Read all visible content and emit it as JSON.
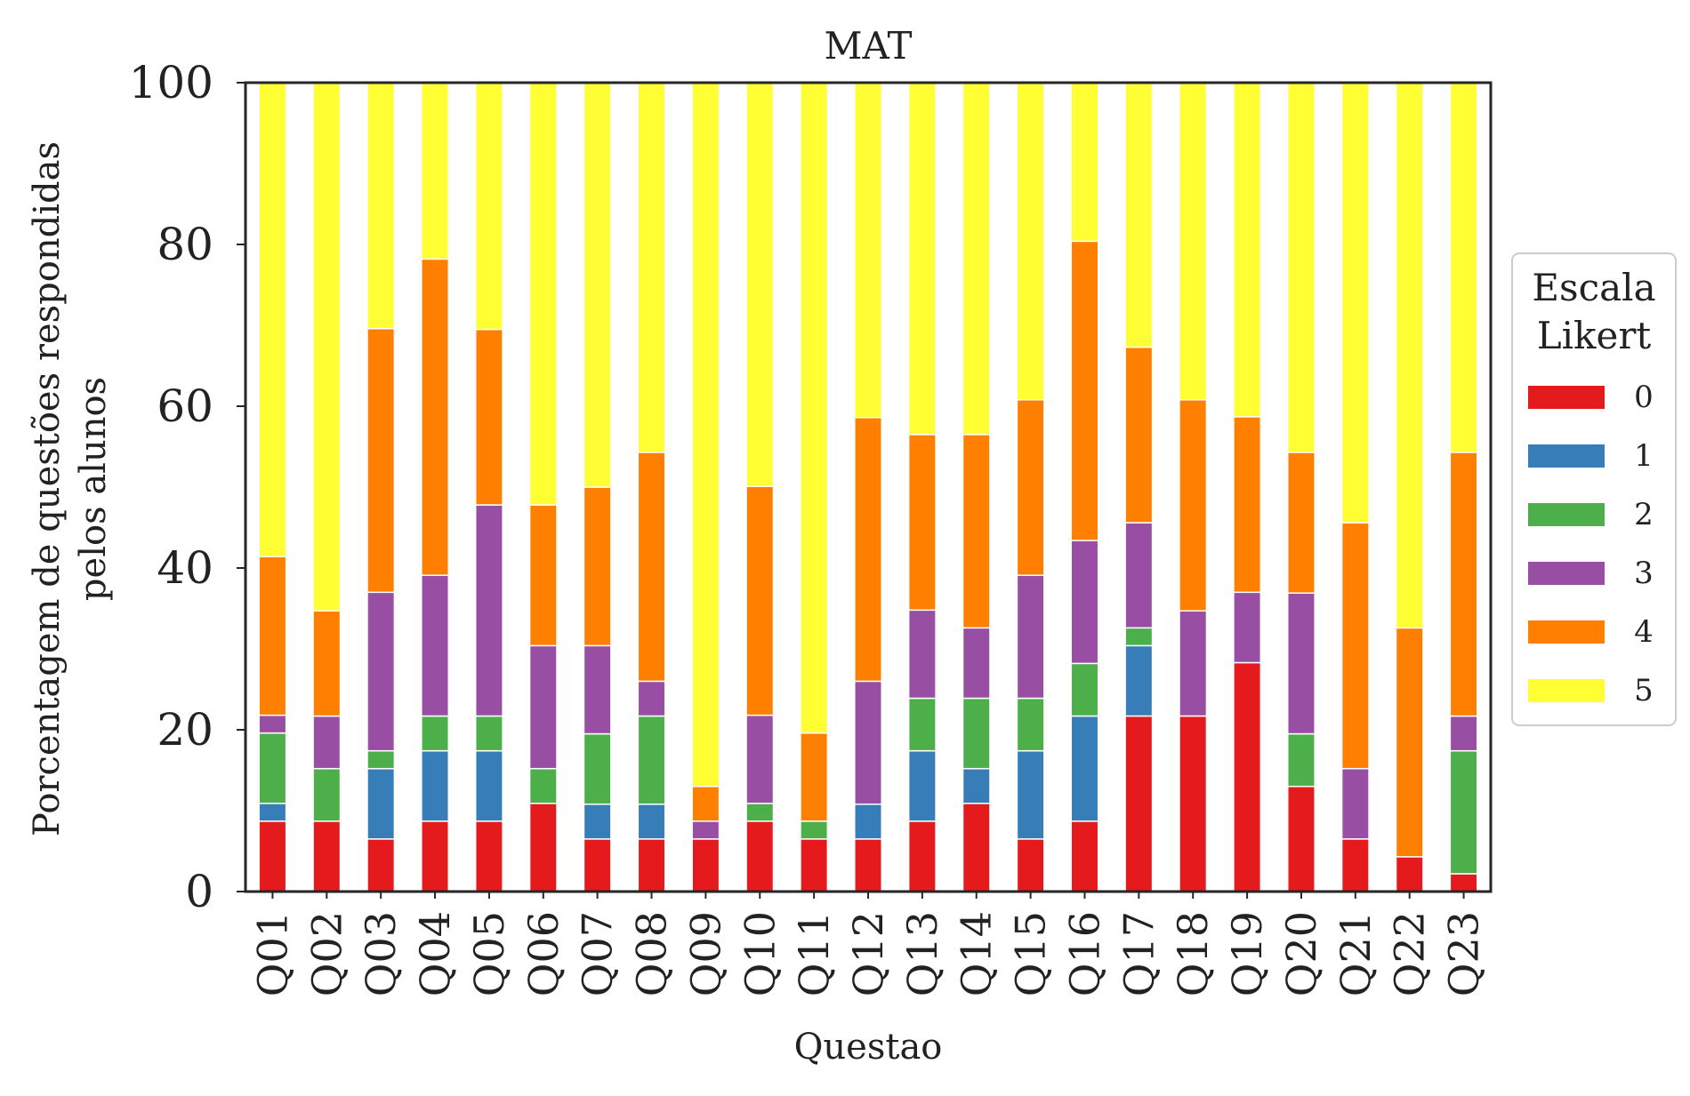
{
  "chart_data": {
    "type": "bar",
    "stacked": true,
    "title": "MAT",
    "xlabel": "Questao",
    "ylabel": [
      "Porcentagem de questões respondidas",
      "pelos alunos"
    ],
    "ylim": [
      0,
      100
    ],
    "yticks": [
      "0",
      "20",
      "40",
      "60",
      "80",
      "100"
    ],
    "grid": false,
    "legend": {
      "title": [
        "Escala",
        "Likert"
      ],
      "placement": "right"
    },
    "categories": [
      "Q01",
      "Q02",
      "Q03",
      "Q04",
      "Q05",
      "Q06",
      "Q07",
      "Q08",
      "Q09",
      "Q10",
      "Q11",
      "Q12",
      "Q13",
      "Q14",
      "Q15",
      "Q16",
      "Q17",
      "Q18",
      "Q19",
      "Q20",
      "Q21",
      "Q22",
      "Q23"
    ],
    "series": [
      {
        "name": "0",
        "color": "#e41a1c",
        "values": [
          8.7,
          8.7,
          6.5,
          8.7,
          8.7,
          10.9,
          6.5,
          6.5,
          6.5,
          8.7,
          6.5,
          6.5,
          8.7,
          10.9,
          6.5,
          8.7,
          21.7,
          21.7,
          28.3,
          13.0,
          6.5,
          4.3,
          2.2
        ]
      },
      {
        "name": "1",
        "color": "#377eb8",
        "values": [
          2.2,
          0,
          8.7,
          8.7,
          8.7,
          0,
          4.3,
          4.3,
          0,
          0,
          0,
          4.3,
          8.7,
          4.3,
          10.9,
          13.0,
          8.7,
          0,
          0,
          0,
          0,
          0,
          0
        ]
      },
      {
        "name": "2",
        "color": "#4daf4a",
        "values": [
          8.7,
          6.5,
          2.2,
          4.3,
          4.3,
          4.3,
          8.7,
          10.9,
          0,
          2.2,
          2.2,
          0,
          6.5,
          8.7,
          6.5,
          6.5,
          2.2,
          0,
          0,
          6.5,
          0,
          0,
          15.2
        ]
      },
      {
        "name": "3",
        "color": "#984ea3",
        "values": [
          2.2,
          6.5,
          19.6,
          17.4,
          26.1,
          15.2,
          10.9,
          4.3,
          2.2,
          10.9,
          0,
          15.2,
          10.9,
          8.7,
          15.2,
          15.2,
          13.0,
          13.0,
          8.7,
          17.4,
          8.7,
          0,
          4.3
        ]
      },
      {
        "name": "4",
        "color": "#ff7f00",
        "values": [
          19.6,
          13.0,
          32.6,
          39.1,
          21.7,
          17.4,
          19.6,
          28.3,
          4.3,
          28.3,
          10.9,
          32.6,
          21.7,
          23.9,
          21.7,
          37.0,
          21.7,
          26.1,
          21.7,
          17.4,
          30.4,
          28.3,
          32.6
        ]
      },
      {
        "name": "5",
        "color": "#ffff33",
        "values": [
          58.7,
          65.2,
          30.4,
          21.7,
          30.4,
          52.2,
          50.0,
          45.7,
          87.0,
          50.0,
          80.4,
          41.3,
          43.5,
          43.5,
          39.1,
          19.6,
          32.6,
          39.1,
          41.3,
          45.7,
          54.3,
          67.4,
          45.7
        ]
      }
    ]
  }
}
